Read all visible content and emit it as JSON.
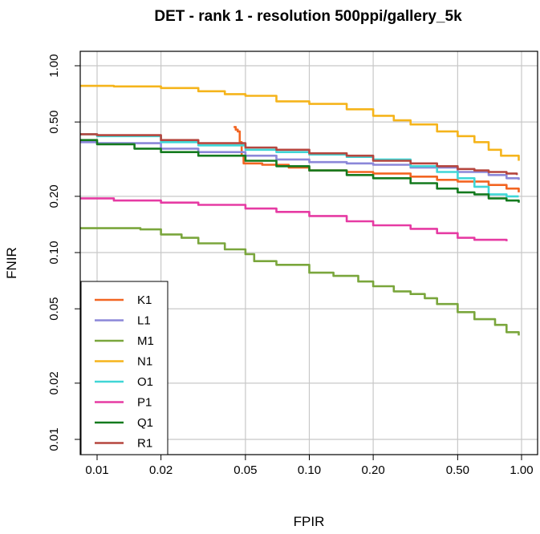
{
  "chart_data": {
    "type": "line",
    "title": "DET - rank 1 - resolution 500ppi/gallery_5k",
    "xlabel": "FPIR",
    "ylabel": "FNIR",
    "x_scale": "log",
    "y_scale": "log",
    "xlim": [
      0.008,
      1.1
    ],
    "ylim": [
      0.0085,
      1.15
    ],
    "x_ticks": [
      {
        "value": 0.01,
        "label": "0.01"
      },
      {
        "value": 0.02,
        "label": "0.02"
      },
      {
        "value": 0.05,
        "label": "0.05"
      },
      {
        "value": 0.1,
        "label": "0.10"
      },
      {
        "value": 0.2,
        "label": "0.20"
      },
      {
        "value": 0.5,
        "label": "0.50"
      },
      {
        "value": 1.0,
        "label": "1.00"
      }
    ],
    "y_ticks": [
      {
        "value": 0.01,
        "label": "0.01"
      },
      {
        "value": 0.02,
        "label": "0.02"
      },
      {
        "value": 0.05,
        "label": "0.05"
      },
      {
        "value": 0.1,
        "label": "0.10"
      },
      {
        "value": 0.2,
        "label": "0.20"
      },
      {
        "value": 0.5,
        "label": "0.50"
      },
      {
        "value": 1.0,
        "label": "1.00"
      }
    ],
    "grid": true,
    "legend_position": "bottom-left",
    "series": [
      {
        "name": "K1",
        "color": "#f26522",
        "points": [
          [
            0.044,
            0.47
          ],
          [
            0.045,
            0.455
          ],
          [
            0.046,
            0.445
          ],
          [
            0.047,
            0.39
          ],
          [
            0.048,
            0.33
          ],
          [
            0.049,
            0.3
          ],
          [
            0.06,
            0.295
          ],
          [
            0.08,
            0.285
          ],
          [
            0.1,
            0.275
          ],
          [
            0.15,
            0.27
          ],
          [
            0.2,
            0.265
          ],
          [
            0.3,
            0.255
          ],
          [
            0.4,
            0.245
          ],
          [
            0.5,
            0.24
          ],
          [
            0.7,
            0.23
          ],
          [
            0.85,
            0.22
          ],
          [
            0.97,
            0.21
          ]
        ]
      },
      {
        "name": "L1",
        "color": "#8b87d9",
        "points": [
          [
            0.008,
            0.39
          ],
          [
            0.01,
            0.385
          ],
          [
            0.02,
            0.36
          ],
          [
            0.03,
            0.345
          ],
          [
            0.05,
            0.33
          ],
          [
            0.07,
            0.315
          ],
          [
            0.1,
            0.305
          ],
          [
            0.15,
            0.3
          ],
          [
            0.2,
            0.295
          ],
          [
            0.3,
            0.285
          ],
          [
            0.5,
            0.27
          ],
          [
            0.7,
            0.26
          ],
          [
            0.85,
            0.25
          ],
          [
            0.97,
            0.245
          ]
        ]
      },
      {
        "name": "M1",
        "color": "#7aa63c",
        "points": [
          [
            0.008,
            0.145
          ],
          [
            0.0082,
            0.135
          ],
          [
            0.012,
            0.135
          ],
          [
            0.016,
            0.133
          ],
          [
            0.02,
            0.125
          ],
          [
            0.025,
            0.12
          ],
          [
            0.03,
            0.112
          ],
          [
            0.04,
            0.104
          ],
          [
            0.05,
            0.098
          ],
          [
            0.055,
            0.09
          ],
          [
            0.07,
            0.086
          ],
          [
            0.1,
            0.078
          ],
          [
            0.13,
            0.075
          ],
          [
            0.17,
            0.07
          ],
          [
            0.2,
            0.066
          ],
          [
            0.25,
            0.062
          ],
          [
            0.3,
            0.06
          ],
          [
            0.35,
            0.057
          ],
          [
            0.4,
            0.053
          ],
          [
            0.5,
            0.048
          ],
          [
            0.6,
            0.044
          ],
          [
            0.75,
            0.041
          ],
          [
            0.85,
            0.0375
          ],
          [
            0.97,
            0.036
          ]
        ]
      },
      {
        "name": "N1",
        "color": "#f5b41b",
        "points": [
          [
            0.008,
            0.78
          ],
          [
            0.012,
            0.775
          ],
          [
            0.02,
            0.76
          ],
          [
            0.03,
            0.73
          ],
          [
            0.04,
            0.705
          ],
          [
            0.05,
            0.69
          ],
          [
            0.07,
            0.645
          ],
          [
            0.1,
            0.625
          ],
          [
            0.15,
            0.585
          ],
          [
            0.2,
            0.54
          ],
          [
            0.25,
            0.51
          ],
          [
            0.3,
            0.485
          ],
          [
            0.4,
            0.445
          ],
          [
            0.5,
            0.42
          ],
          [
            0.6,
            0.39
          ],
          [
            0.7,
            0.355
          ],
          [
            0.8,
            0.33
          ],
          [
            0.97,
            0.31
          ]
        ]
      },
      {
        "name": "O1",
        "color": "#40d6d6",
        "points": [
          [
            0.008,
            0.43
          ],
          [
            0.01,
            0.42
          ],
          [
            0.02,
            0.39
          ],
          [
            0.03,
            0.375
          ],
          [
            0.05,
            0.355
          ],
          [
            0.07,
            0.345
          ],
          [
            0.1,
            0.335
          ],
          [
            0.15,
            0.325
          ],
          [
            0.2,
            0.315
          ],
          [
            0.3,
            0.29
          ],
          [
            0.4,
            0.27
          ],
          [
            0.5,
            0.25
          ],
          [
            0.6,
            0.225
          ],
          [
            0.7,
            0.205
          ],
          [
            0.85,
            0.2
          ],
          [
            0.97,
            0.2
          ]
        ]
      },
      {
        "name": "P1",
        "color": "#e63ba3",
        "points": [
          [
            0.008,
            0.195
          ],
          [
            0.012,
            0.19
          ],
          [
            0.02,
            0.185
          ],
          [
            0.03,
            0.18
          ],
          [
            0.05,
            0.172
          ],
          [
            0.07,
            0.165
          ],
          [
            0.1,
            0.157
          ],
          [
            0.15,
            0.147
          ],
          [
            0.2,
            0.14
          ],
          [
            0.3,
            0.134
          ],
          [
            0.4,
            0.127
          ],
          [
            0.5,
            0.12
          ],
          [
            0.6,
            0.117
          ],
          [
            0.85,
            0.115
          ]
        ]
      },
      {
        "name": "Q1",
        "color": "#147a1e",
        "points": [
          [
            0.008,
            0.46
          ],
          [
            0.0081,
            0.4
          ],
          [
            0.01,
            0.38
          ],
          [
            0.015,
            0.36
          ],
          [
            0.02,
            0.345
          ],
          [
            0.03,
            0.33
          ],
          [
            0.05,
            0.31
          ],
          [
            0.07,
            0.29
          ],
          [
            0.1,
            0.275
          ],
          [
            0.15,
            0.26
          ],
          [
            0.2,
            0.25
          ],
          [
            0.3,
            0.235
          ],
          [
            0.4,
            0.22
          ],
          [
            0.5,
            0.21
          ],
          [
            0.6,
            0.205
          ],
          [
            0.7,
            0.195
          ],
          [
            0.85,
            0.19
          ],
          [
            0.97,
            0.185
          ]
        ]
      },
      {
        "name": "R1",
        "color": "#b5463f",
        "points": [
          [
            0.008,
            0.43
          ],
          [
            0.01,
            0.425
          ],
          [
            0.02,
            0.4
          ],
          [
            0.03,
            0.385
          ],
          [
            0.05,
            0.365
          ],
          [
            0.07,
            0.355
          ],
          [
            0.1,
            0.34
          ],
          [
            0.15,
            0.33
          ],
          [
            0.2,
            0.31
          ],
          [
            0.3,
            0.3
          ],
          [
            0.4,
            0.29
          ],
          [
            0.5,
            0.28
          ],
          [
            0.6,
            0.275
          ],
          [
            0.7,
            0.27
          ],
          [
            0.85,
            0.265
          ],
          [
            0.95,
            0.26
          ]
        ]
      }
    ]
  }
}
